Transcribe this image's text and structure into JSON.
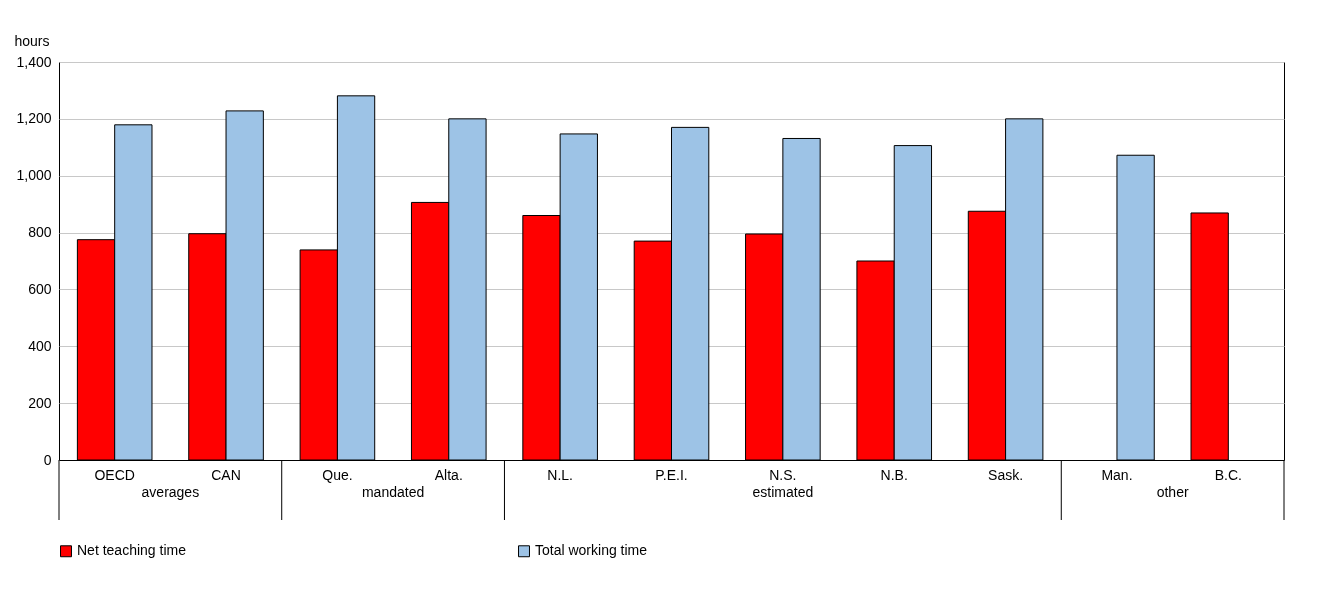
{
  "chart_data": {
    "type": "bar",
    "ylabel": "hours",
    "categories": [
      "OECD",
      "CAN",
      "Que.",
      "Alta.",
      "N.L.",
      "P.E.I.",
      "N.S.",
      "N.B.",
      "Sask.",
      "Man.",
      "B.C."
    ],
    "series": [
      {
        "name": "Net teaching time",
        "color": "#ff0000",
        "values": [
          775,
          796,
          739,
          906,
          860,
          770,
          795,
          700,
          875,
          null,
          869
        ]
      },
      {
        "name": "Total working time",
        "color": "#9dc3e6",
        "values": [
          1179,
          1228,
          1281,
          1200,
          1147,
          1170,
          1131,
          1106,
          1200,
          1072,
          null
        ]
      }
    ],
    "ylim": [
      0,
      1400
    ],
    "yticks": [
      0,
      {
        "value": 200,
        "label": "200"
      },
      {
        "value": 400,
        "label": "400"
      },
      {
        "value": 600,
        "label": "600"
      },
      {
        "value": 800,
        "label": "800"
      },
      {
        "value": 1000,
        "label": "1,000"
      },
      {
        "value": 1200,
        "label": "1,200"
      },
      {
        "value": 1400,
        "label": "1,400"
      }
    ],
    "grid": "y",
    "legend": "bottom",
    "annotations": [
      "averages",
      "mandated",
      "estimated",
      "other"
    ]
  }
}
